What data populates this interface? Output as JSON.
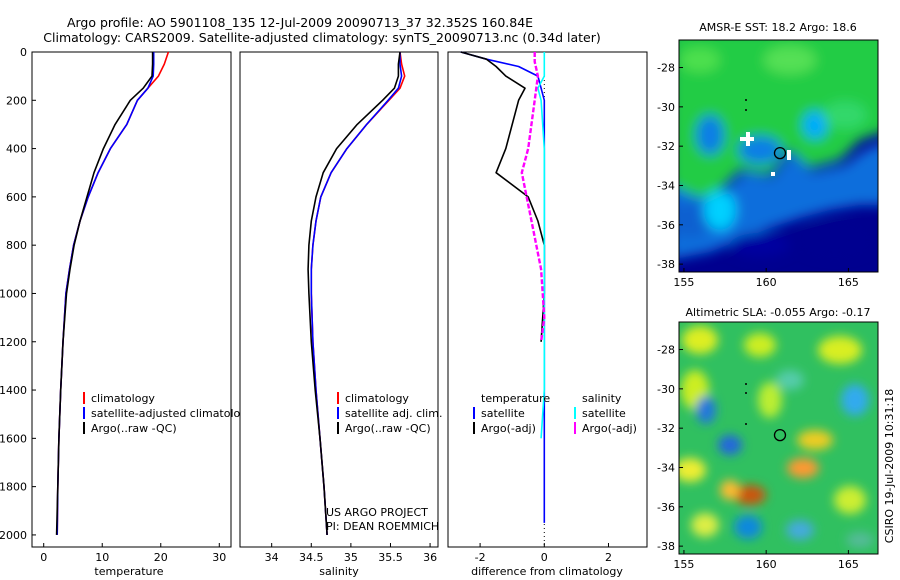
{
  "header": {
    "line1": "Argo profile: AO 5901108_135 12-Jul-2009 20090713_37 32.352S 160.84E",
    "line2": "Climatology: CARS2009. Satellite-adjusted climatology: synTS_20090713.nc (0.34d later)"
  },
  "side_label": "CSIRO 19-Jul-2009 10:31:18",
  "footer": {
    "line1": "US ARGO PROJECT",
    "line2": "PI: DEAN ROEMMICH"
  },
  "colors": {
    "climatology": "#ff0000",
    "satellite": "#0000ff",
    "argo": "#000000",
    "cyan": "#00ffff",
    "magenta": "#ff00ff"
  },
  "chart_data": [
    {
      "type": "line",
      "xlabel": "temperature",
      "ylim": [
        2050,
        0
      ],
      "xlim": [
        -2,
        32
      ],
      "yticks": [
        0,
        200,
        400,
        600,
        800,
        1000,
        1200,
        1400,
        1600,
        1800,
        2000
      ],
      "xticks": [
        0,
        10,
        20,
        30
      ],
      "legend_position": "lower-right",
      "series": [
        {
          "name": "climatology",
          "color": "#ff0000",
          "x": [
            21.3,
            20.6,
            19.6,
            17.8,
            16.0,
            14.2,
            11.4,
            9.3,
            7.6,
            6.2,
            5.1,
            4.4,
            3.8,
            3.3,
            2.9,
            2.6,
            2.4,
            2.3
          ],
          "y": [
            0,
            50,
            100,
            150,
            200,
            300,
            400,
            500,
            600,
            700,
            800,
            900,
            1000,
            1200,
            1400,
            1600,
            1800,
            2000
          ]
        },
        {
          "name": "satellite-adjusted climatology",
          "color": "#0000ff",
          "x": [
            18.8,
            18.8,
            18.7,
            17.8,
            16.0,
            14.2,
            11.4,
            9.3,
            7.6,
            6.2,
            5.1,
            4.4,
            3.8,
            3.3,
            2.9,
            2.6,
            2.4,
            2.3
          ],
          "y": [
            0,
            50,
            100,
            150,
            200,
            300,
            400,
            500,
            600,
            700,
            800,
            900,
            1000,
            1200,
            1400,
            1600,
            1800,
            2000
          ]
        },
        {
          "name": "Argo(..raw -QC)",
          "color": "#000000",
          "x": [
            18.6,
            18.6,
            18.5,
            17.0,
            14.8,
            12.2,
            10.2,
            8.6,
            7.4,
            6.2,
            5.2,
            4.5,
            3.9,
            3.3,
            2.9,
            2.6,
            2.4,
            2.2
          ],
          "y": [
            0,
            50,
            100,
            150,
            200,
            300,
            400,
            500,
            600,
            700,
            800,
            900,
            1000,
            1200,
            1400,
            1600,
            1800,
            2000
          ]
        }
      ]
    },
    {
      "type": "line",
      "xlabel": "salinity",
      "ylim": [
        2050,
        0
      ],
      "xlim": [
        33.6,
        36.1
      ],
      "xticks": [
        34,
        34.5,
        35,
        35.5,
        36
      ],
      "legend_position": "lower-right",
      "series": [
        {
          "name": "climatology",
          "color": "#ff0000",
          "x": [
            35.62,
            35.64,
            35.68,
            35.62,
            35.48,
            35.2,
            34.95,
            34.75,
            34.62,
            34.56,
            34.52,
            34.5,
            34.5,
            34.52,
            34.56,
            34.61,
            34.66,
            34.7
          ],
          "y": [
            0,
            50,
            100,
            150,
            200,
            300,
            400,
            500,
            600,
            700,
            800,
            900,
            1000,
            1200,
            1400,
            1600,
            1800,
            2000
          ]
        },
        {
          "name": "satellite adj. clim.",
          "color": "#0000ff",
          "x": [
            35.62,
            35.62,
            35.64,
            35.6,
            35.47,
            35.2,
            34.95,
            34.75,
            34.62,
            34.56,
            34.52,
            34.5,
            34.5,
            34.52,
            34.56,
            34.61,
            34.66,
            34.7
          ],
          "y": [
            0,
            50,
            100,
            150,
            200,
            300,
            400,
            500,
            600,
            700,
            800,
            900,
            1000,
            1200,
            1400,
            1600,
            1800,
            2000
          ]
        },
        {
          "name": "Argo(..raw -QC)",
          "color": "#000000",
          "x": [
            35.62,
            35.6,
            35.6,
            35.55,
            35.4,
            35.08,
            34.82,
            34.65,
            34.56,
            34.5,
            34.47,
            34.46,
            34.47,
            34.5,
            34.55,
            34.61,
            34.66,
            34.7
          ],
          "y": [
            0,
            50,
            100,
            150,
            200,
            300,
            400,
            500,
            600,
            700,
            800,
            900,
            1000,
            1200,
            1400,
            1600,
            1800,
            2000
          ]
        }
      ]
    },
    {
      "type": "line",
      "xlabel": "difference from climatology",
      "ylim": [
        2050,
        0
      ],
      "xlim": [
        -3,
        3.2
      ],
      "xticks": [
        -2,
        0,
        2
      ],
      "legend_headers": [
        "temperature",
        "salinity"
      ],
      "legend_position": "lower",
      "series": [
        {
          "name": "satellite",
          "group": "temperature",
          "color": "#0000ff",
          "x": [
            -2.6,
            -1.8,
            -0.8,
            -0.2,
            0.0,
            0.0,
            0.0,
            0.0,
            0.0,
            0.0,
            0.0,
            0.0
          ],
          "y": [
            0,
            30,
            60,
            100,
            200,
            400,
            800,
            1200,
            1400,
            1600,
            1800,
            1950
          ]
        },
        {
          "name": "Argo(-adj)",
          "group": "temperature",
          "color": "#000000",
          "x": [
            -2.6,
            -1.8,
            -1.5,
            -1.2,
            -0.6,
            -0.8,
            -1.2,
            -1.5,
            -0.5,
            -0.2,
            0.0,
            0.0,
            -0.1
          ],
          "y": [
            0,
            30,
            60,
            100,
            150,
            200,
            400,
            500,
            600,
            700,
            800,
            1000,
            1200
          ]
        },
        {
          "name": "satellite",
          "group": "salinity",
          "color": "#00ffff",
          "x": [
            0.0,
            0.0,
            -0.2,
            -0.1,
            0.0,
            0.0,
            0.0,
            0.0,
            0.0,
            -0.1
          ],
          "y": [
            0,
            100,
            150,
            200,
            400,
            800,
            1000,
            1200,
            1400,
            1600
          ]
        },
        {
          "name": "Argo(-adj)",
          "group": "salinity",
          "color": "#ff00ff",
          "x": [
            -0.3,
            -0.3,
            -0.2,
            -0.3,
            -0.5,
            -0.7,
            -0.4,
            -0.1,
            0.0,
            -0.1
          ],
          "y": [
            0,
            40,
            100,
            200,
            400,
            500,
            700,
            900,
            1100,
            1200
          ]
        }
      ]
    },
    {
      "type": "heatmap",
      "title": "AMSR-E SST: 18.2 Argo: 18.6",
      "xlim": [
        154.7,
        166.8
      ],
      "ylim": [
        -38.4,
        -26.6
      ],
      "xticks": [
        155,
        160,
        165
      ],
      "yticks": [
        -28,
        -30,
        -32,
        -34,
        -36,
        -38
      ],
      "marker": {
        "lon": 160.84,
        "lat": -32.352
      }
    },
    {
      "type": "heatmap",
      "title": "Altimetric SLA: -0.055 Argo: -0.17",
      "xlim": [
        154.7,
        166.8
      ],
      "ylim": [
        -38.4,
        -26.6
      ],
      "xticks": [
        155,
        160,
        165
      ],
      "yticks": [
        -28,
        -30,
        -32,
        -34,
        -36,
        -38
      ],
      "marker": {
        "lon": 160.84,
        "lat": -32.352
      }
    }
  ]
}
